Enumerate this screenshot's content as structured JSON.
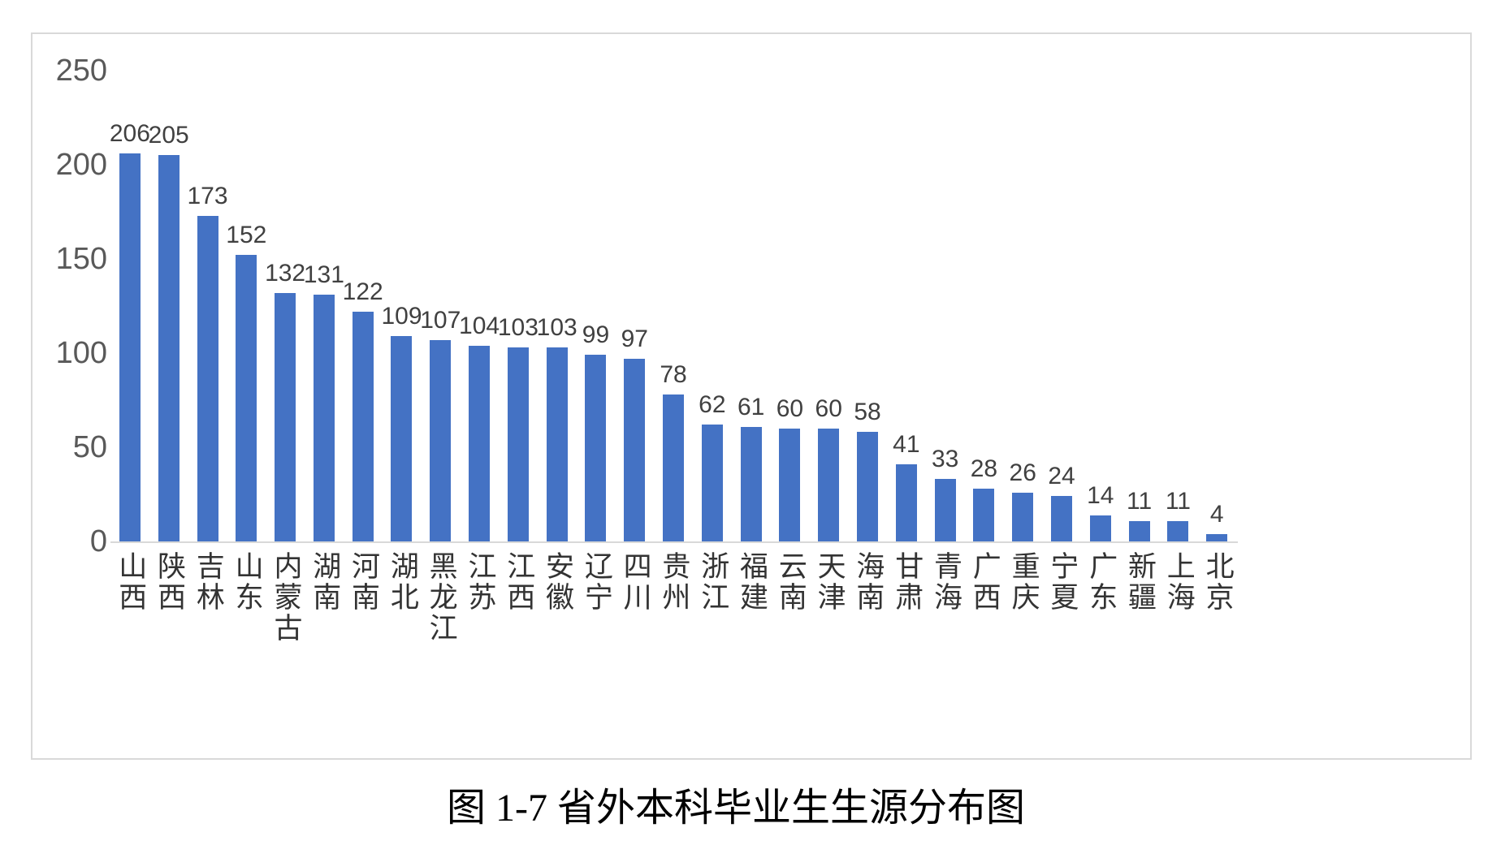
{
  "caption": "图 1-7 省外本科毕业生生源分布图",
  "chart_data": {
    "type": "bar",
    "title": "图 1-7 省外本科毕业生生源分布图",
    "categories": [
      "山西",
      "陕西",
      "吉林",
      "山东",
      "内蒙古",
      "湖南",
      "河南",
      "湖北",
      "黑龙江",
      "江苏",
      "江西",
      "安徽",
      "辽宁",
      "四川",
      "贵州",
      "浙江",
      "福建",
      "云南",
      "天津",
      "海南",
      "甘肃",
      "青海",
      "广西",
      "重庆",
      "宁夏",
      "广东",
      "新疆",
      "上海",
      "北京"
    ],
    "values": [
      206,
      205,
      173,
      152,
      132,
      131,
      122,
      109,
      107,
      104,
      103,
      103,
      99,
      97,
      78,
      62,
      61,
      60,
      60,
      58,
      41,
      33,
      28,
      26,
      24,
      14,
      11,
      11,
      4
    ],
    "xlabel": "",
    "ylabel": "",
    "ylim": [
      0,
      250
    ],
    "yticks": [
      0,
      50,
      100,
      150,
      200,
      250
    ],
    "grid": false,
    "legend": false,
    "data_labels": true,
    "bar_color": "#4472C4"
  },
  "colors": {
    "bar": "#4472C4",
    "axis_text": "#595959",
    "value_text": "#404040",
    "category_text": "#333333",
    "frame_border": "#d9d9d9"
  }
}
